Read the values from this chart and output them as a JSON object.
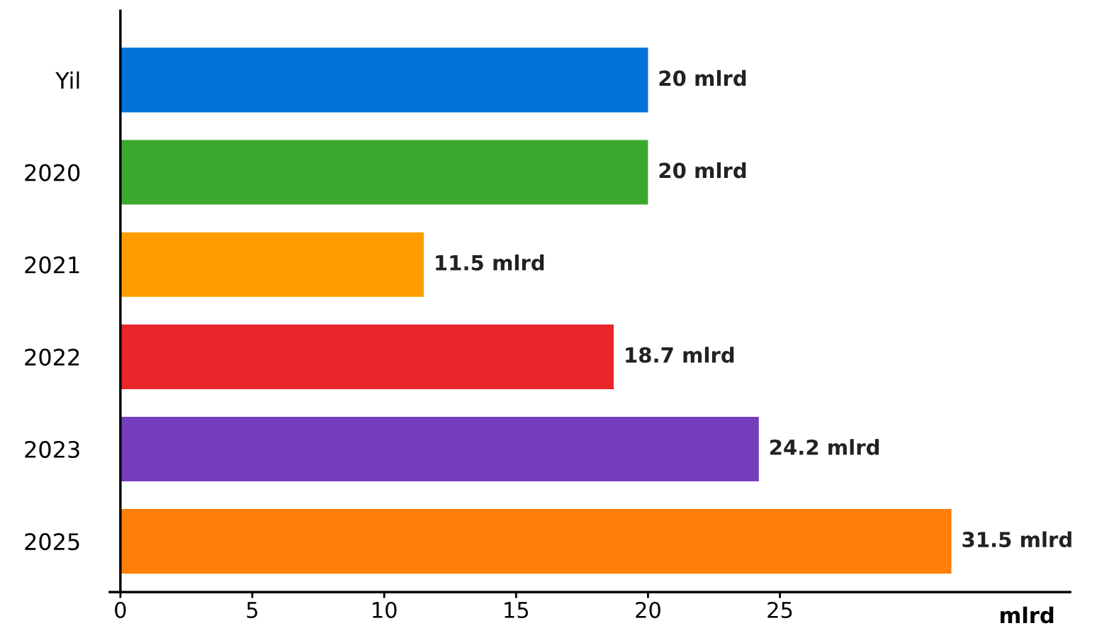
{
  "chart_data": {
    "type": "bar",
    "orientation": "horizontal",
    "xlabel": "mlrd",
    "categories": [
      "Yil",
      "2020",
      "2021",
      "2022",
      "2023",
      "2025"
    ],
    "values": [
      20,
      20,
      11.5,
      18.7,
      24.2,
      31.5
    ],
    "colors": [
      "#0072d8",
      "#3da82f",
      "#ff9d00",
      "#e8262b",
      "#753ebf",
      "#ff7f0a"
    ],
    "value_labels": [
      "20 mlrd",
      "20 mlrd",
      "11.5 mlrd",
      "18.7 mlrd",
      "24.2 mlrd",
      "31.5 mlrd"
    ],
    "xlim": [
      -0.4,
      36
    ],
    "xticks": [
      0,
      5,
      10,
      15,
      20,
      25
    ],
    "grid": false,
    "legend": false,
    "tick_labels": "xy"
  }
}
